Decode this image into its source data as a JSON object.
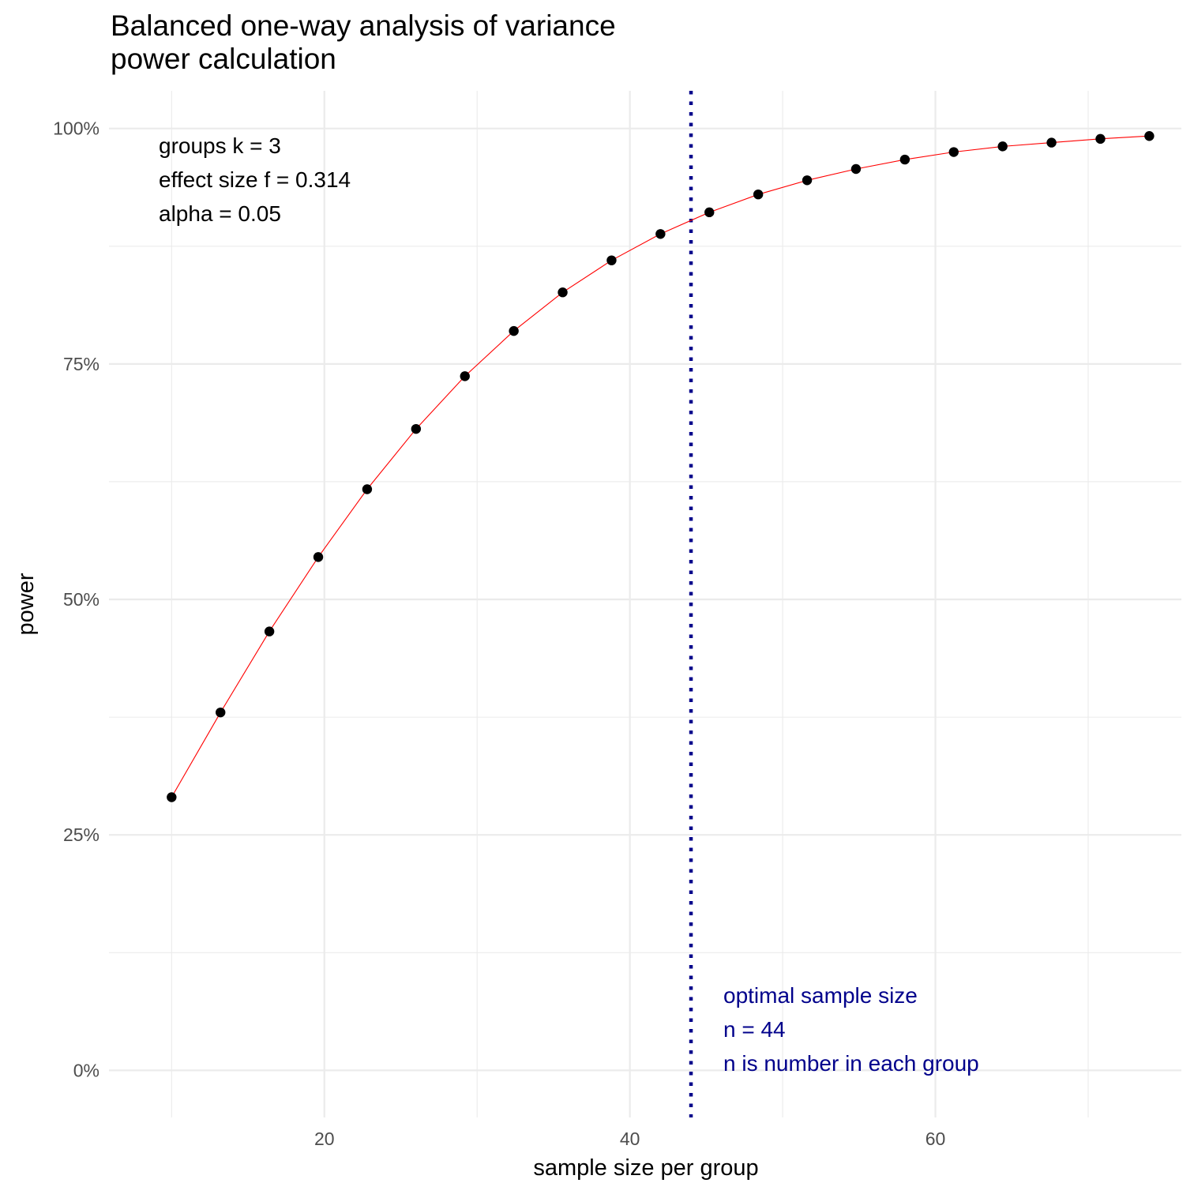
{
  "chart_data": {
    "type": "line",
    "title_lines": [
      "Balanced one-way analysis of variance",
      "power calculation"
    ],
    "xlabel": "sample size per group",
    "ylabel": "power",
    "xlim": [
      5.9,
      76.1
    ],
    "ylim": [
      -0.05,
      1.04
    ],
    "x_ticks": [
      20,
      40,
      60
    ],
    "x_tick_labels": [
      "20",
      "40",
      "60"
    ],
    "x_minor": [
      10,
      30,
      50,
      70
    ],
    "y_ticks": [
      0,
      0.25,
      0.5,
      0.75,
      1.0
    ],
    "y_tick_labels": [
      "0%",
      "25%",
      "50%",
      "75%",
      "100%"
    ],
    "y_minor": [
      0.125,
      0.375,
      0.625,
      0.875
    ],
    "grid": true,
    "series": [
      {
        "x": [
          10,
          13.2,
          16.4,
          19.6,
          22.8,
          26,
          29.2,
          32.4,
          35.6,
          38.8,
          42,
          45.2,
          48.4,
          51.6,
          54.8,
          58,
          61.2,
          64.4,
          67.6,
          70.8,
          74
        ],
        "y": [
          0.29,
          0.38,
          0.466,
          0.545,
          0.617,
          0.681,
          0.737,
          0.785,
          0.826,
          0.86,
          0.888,
          0.911,
          0.93,
          0.945,
          0.957,
          0.967,
          0.975,
          0.981,
          0.985,
          0.989,
          0.992
        ],
        "line_color": "#ff0000",
        "point_color": "#000000"
      }
    ],
    "vline": {
      "x": 44,
      "color": "#00008b",
      "style": "dotted"
    },
    "annotation_left": {
      "lines": [
        "groups k = 3",
        "effect size f = 0.314",
        "alpha = 0.05"
      ],
      "color": "#000000"
    },
    "annotation_right": {
      "lines": [
        "optimal sample size",
        "n = 44",
        "n is number in each group"
      ],
      "color": "#00008b"
    }
  }
}
